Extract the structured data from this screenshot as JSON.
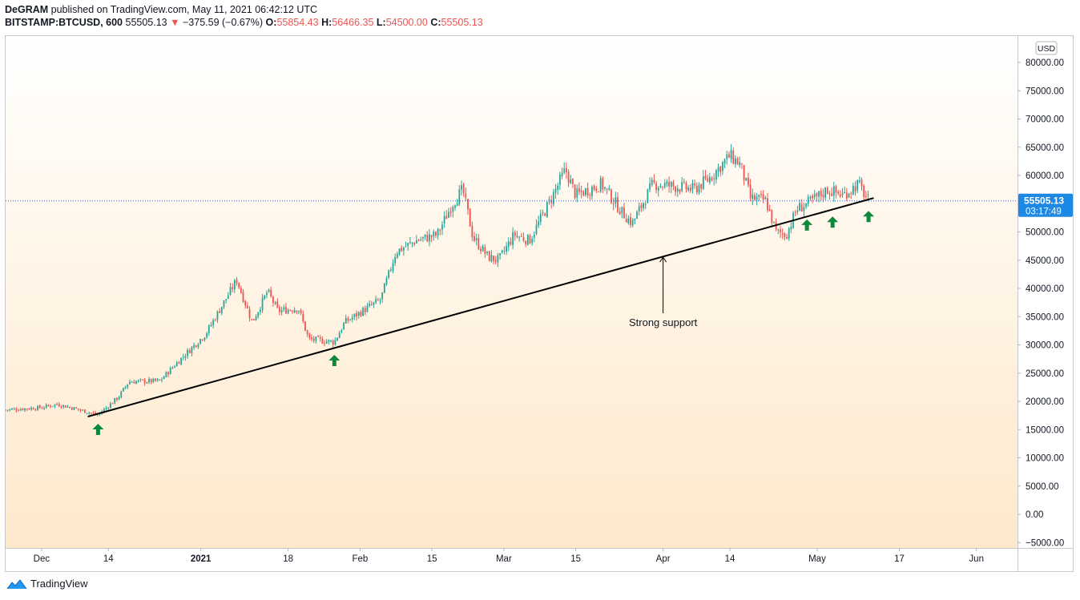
{
  "header": {
    "line1_author": "DeGRAM",
    "line1_rest": "published on TradingView.com, May 11, 2021 06:42:12 UTC",
    "symbol": "BITSTAMP:BTCUSD, 600",
    "last": "55505.13",
    "change_arrow": "▼",
    "change": "−375.59 (−0.67%)",
    "o_label": "O:",
    "o_value": "55854.43",
    "h_label": "H:",
    "h_value": "56466.35",
    "l_label": "L:",
    "l_value": "54500.00",
    "c_label": "C:",
    "c_value": "55505.13"
  },
  "price_axis": {
    "currency": "USD",
    "ticks": [
      "80000.00",
      "75000.00",
      "70000.00",
      "65000.00",
      "60000.00",
      "55000.00",
      "50000.00",
      "45000.00",
      "40000.00",
      "35000.00",
      "30000.00",
      "25000.00",
      "20000.00",
      "15000.00",
      "10000.00",
      "5000.00",
      "0.00",
      "−5000.00"
    ],
    "last_price_label": "55505.13",
    "countdown_label": "03:17:49"
  },
  "time_axis": {
    "labels": [
      "Dec",
      "14",
      "2021",
      "18",
      "Feb",
      "15",
      "Mar",
      "15",
      "Apr",
      "14",
      "May",
      "17",
      "Jun"
    ]
  },
  "annotation": {
    "text": "Strong support"
  },
  "footer": {
    "brand": "TradingView",
    "logo_icon": "tradingview-logo-icon"
  },
  "colors": {
    "up": "#26a69a",
    "down": "#ef5350",
    "trendline": "#000000",
    "arrow": "#0a8a3a",
    "last_price": "#2962ff",
    "price_tag": "#1e88e5"
  },
  "chart_data": {
    "type": "candlestick",
    "symbol": "BITSTAMP:BTCUSD",
    "ylim": [
      -5000,
      80000
    ],
    "x_range": [
      "2020-11-24",
      "2021-06-09"
    ],
    "last_price": 55505.13,
    "key_closes": [
      {
        "date": "2020-11-24",
        "close": 18500
      },
      {
        "date": "2020-12-01",
        "close": 18900
      },
      {
        "date": "2020-12-04",
        "close": 19500
      },
      {
        "date": "2020-12-08",
        "close": 18600
      },
      {
        "date": "2020-12-12",
        "close": 17600
      },
      {
        "date": "2020-12-16",
        "close": 20800
      },
      {
        "date": "2020-12-18",
        "close": 23500
      },
      {
        "date": "2020-12-24",
        "close": 23600
      },
      {
        "date": "2020-12-27",
        "close": 26500
      },
      {
        "date": "2021-01-02",
        "close": 32000
      },
      {
        "date": "2021-01-08",
        "close": 41500
      },
      {
        "date": "2021-01-11",
        "close": 34000
      },
      {
        "date": "2021-01-14",
        "close": 39500
      },
      {
        "date": "2021-01-16",
        "close": 36000
      },
      {
        "date": "2021-01-20",
        "close": 36500
      },
      {
        "date": "2021-01-22",
        "close": 31000
      },
      {
        "date": "2021-01-27",
        "close": 30500
      },
      {
        "date": "2021-01-29",
        "close": 34000
      },
      {
        "date": "2021-02-05",
        "close": 38000
      },
      {
        "date": "2021-02-08",
        "close": 46500
      },
      {
        "date": "2021-02-12",
        "close": 48500
      },
      {
        "date": "2021-02-16",
        "close": 49500
      },
      {
        "date": "2021-02-19",
        "close": 55000
      },
      {
        "date": "2021-02-21",
        "close": 57500
      },
      {
        "date": "2021-02-23",
        "close": 49000
      },
      {
        "date": "2021-02-26",
        "close": 45500
      },
      {
        "date": "2021-02-28",
        "close": 45000
      },
      {
        "date": "2021-03-03",
        "close": 49500
      },
      {
        "date": "2021-03-06",
        "close": 48500
      },
      {
        "date": "2021-03-10",
        "close": 55500
      },
      {
        "date": "2021-03-13",
        "close": 61000
      },
      {
        "date": "2021-03-15",
        "close": 56500
      },
      {
        "date": "2021-03-20",
        "close": 58500
      },
      {
        "date": "2021-03-24",
        "close": 53500
      },
      {
        "date": "2021-03-26",
        "close": 51500
      },
      {
        "date": "2021-03-30",
        "close": 58500
      },
      {
        "date": "2021-04-04",
        "close": 58000
      },
      {
        "date": "2021-04-07",
        "close": 57500
      },
      {
        "date": "2021-04-10",
        "close": 59500
      },
      {
        "date": "2021-04-14",
        "close": 63500
      },
      {
        "date": "2021-04-16",
        "close": 62000
      },
      {
        "date": "2021-04-18",
        "close": 56000
      },
      {
        "date": "2021-04-21",
        "close": 55500
      },
      {
        "date": "2021-04-23",
        "close": 50000
      },
      {
        "date": "2021-04-25",
        "close": 49500
      },
      {
        "date": "2021-04-27",
        "close": 54000
      },
      {
        "date": "2021-04-30",
        "close": 55500
      },
      {
        "date": "2021-05-03",
        "close": 57500
      },
      {
        "date": "2021-05-06",
        "close": 56500
      },
      {
        "date": "2021-05-09",
        "close": 58500
      },
      {
        "date": "2021-05-11",
        "close": 55505
      }
    ],
    "trendline": {
      "start": {
        "date": "2020-12-10",
        "price": 17300
      },
      "end": {
        "date": "2021-05-12",
        "price": 56000
      }
    },
    "support_arrows": [
      {
        "date": "2020-12-12",
        "price": 17300
      },
      {
        "date": "2021-01-27",
        "price": 29500
      },
      {
        "date": "2021-04-29",
        "price": 53500
      },
      {
        "date": "2021-05-04",
        "price": 54000
      },
      {
        "date": "2021-05-11",
        "price": 55000
      }
    ],
    "callout": {
      "text": "Strong support",
      "date": "2021-04-01",
      "price": 45800
    }
  }
}
